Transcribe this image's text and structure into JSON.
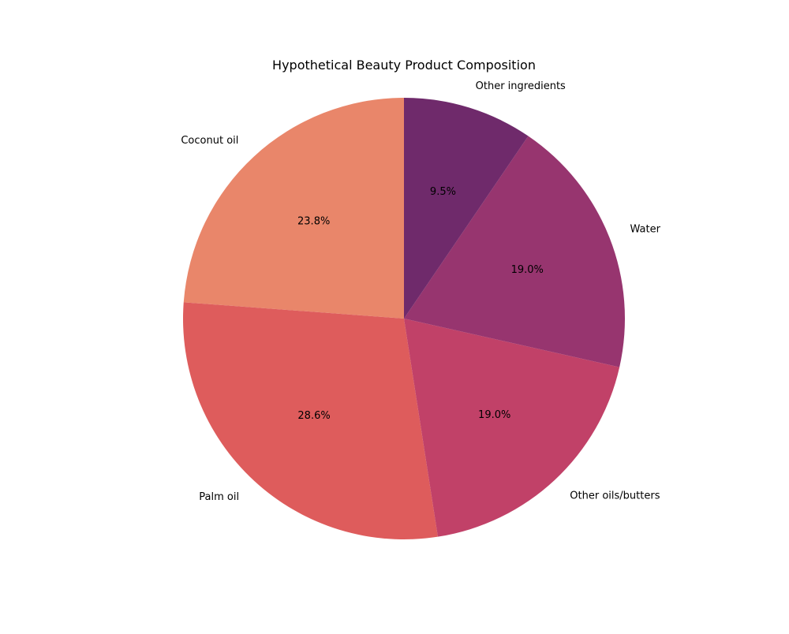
{
  "chart_data": {
    "type": "pie",
    "title": "Hypothetical Beauty Product Composition",
    "start_angle_deg": 90,
    "direction": "counterclockwise",
    "legend": "none",
    "slices": [
      {
        "label": "Coconut oil",
        "value": 23.8,
        "pct_label": "23.8%",
        "color": "#e9866a"
      },
      {
        "label": "Palm oil",
        "value": 28.6,
        "pct_label": "28.6%",
        "color": "#de5c5c"
      },
      {
        "label": "Other oils/butters",
        "value": 19.0,
        "pct_label": "19.0%",
        "color": "#c14168"
      },
      {
        "label": "Water",
        "value": 19.0,
        "pct_label": "19.0%",
        "color": "#97356f"
      },
      {
        "label": "Other ingredients",
        "value": 9.5,
        "pct_label": "9.5%",
        "color": "#6f2a6b"
      }
    ]
  }
}
